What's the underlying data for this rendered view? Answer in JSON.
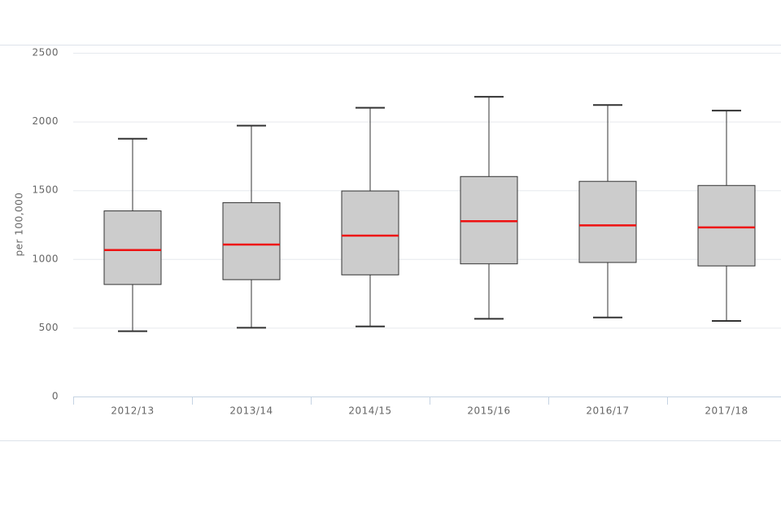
{
  "chart_data": {
    "type": "box",
    "y_label": "per 100,000",
    "categories": [
      "2012/13",
      "2013/14",
      "2014/15",
      "2015/16",
      "2016/17",
      "2017/18"
    ],
    "low": [
      475,
      500,
      510,
      565,
      575,
      550
    ],
    "q1": [
      815,
      850,
      885,
      965,
      975,
      950
    ],
    "median": [
      1065,
      1105,
      1170,
      1275,
      1245,
      1230
    ],
    "q3": [
      1350,
      1410,
      1495,
      1600,
      1565,
      1535
    ],
    "high": [
      1875,
      1970,
      2100,
      2180,
      2120,
      2080
    ],
    "box_color": "#cccccc",
    "median_color": "#ee1111",
    "ylim": [
      0,
      2500
    ],
    "yticks": [
      0,
      500,
      1000,
      1500,
      2000,
      2500
    ],
    "grid": true
  }
}
